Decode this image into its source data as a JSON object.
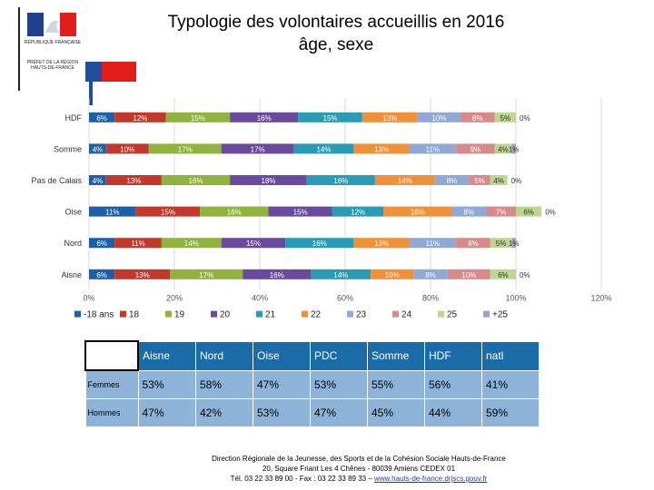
{
  "header": {
    "title_line1": "Typologie des volontaires accueillis en 2016",
    "title_line2": "âge, sexe",
    "logo_republic": "RÉPUBLIQUE FRANÇAISE",
    "logo_prefet": "PRÉFET DE LA RÉGION HAUTS-DE-FRANCE"
  },
  "chart_data": {
    "type": "bar",
    "orientation": "horizontal",
    "stacked": true,
    "categories": [
      "HDF",
      "Somme",
      "Pas de Calais",
      "Oise",
      "Nord",
      "Aisne"
    ],
    "series": [
      {
        "name": "-18 ans",
        "color": "#1f5fa8",
        "values": [
          6,
          4,
          4,
          11,
          6,
          6
        ]
      },
      {
        "name": "18",
        "color": "#c0392b",
        "values": [
          12,
          10,
          13,
          15,
          11,
          13
        ]
      },
      {
        "name": "19",
        "color": "#8fb33e",
        "values": [
          15,
          17,
          16,
          16,
          14,
          17
        ]
      },
      {
        "name": "20",
        "color": "#6a4a9c",
        "values": [
          16,
          17,
          18,
          15,
          15,
          16
        ]
      },
      {
        "name": "21",
        "color": "#2a9bb5",
        "values": [
          15,
          14,
          16,
          12,
          16,
          14
        ]
      },
      {
        "name": "22",
        "color": "#f0913a",
        "values": [
          13,
          13,
          14,
          16,
          13,
          10
        ]
      },
      {
        "name": "23",
        "color": "#8fa8d6",
        "values": [
          10,
          11,
          8,
          8,
          11,
          8
        ]
      },
      {
        "name": "24",
        "color": "#d88a8a",
        "values": [
          8,
          9,
          5,
          7,
          8,
          10
        ]
      },
      {
        "name": "25",
        "color": "#bcd890",
        "values": [
          5,
          4,
          4,
          6,
          5,
          6
        ]
      },
      {
        "name": "+25",
        "color": "#a89cc8",
        "values": [
          0,
          1,
          0,
          0,
          1,
          0
        ]
      }
    ],
    "labels": [
      [
        "6%",
        "12%",
        "15%",
        "16%",
        "15%",
        "13%",
        "10%",
        "8%",
        "5%",
        "0%"
      ],
      [
        "4%",
        "10%",
        "17%",
        "17%",
        "14%",
        "13%",
        "11%",
        "9%",
        "4%",
        "1%"
      ],
      [
        "4%",
        "13%",
        "16%",
        "18%",
        "16%",
        "14%",
        "8%",
        "5%",
        "4%",
        "0%"
      ],
      [
        "11%",
        "15%",
        "16%",
        "15%",
        "12%",
        "16%",
        "8%",
        "7%",
        "6%",
        "0%"
      ],
      [
        "6%",
        "11%",
        "14%",
        "15%",
        "16%",
        "13%",
        "11%",
        "8%",
        "5%",
        "1%"
      ],
      [
        "6%",
        "13%",
        "17%",
        "16%",
        "14%",
        "10%",
        "8%",
        "10%",
        "6%",
        "0%"
      ]
    ],
    "x_ticks": [
      "0%",
      "20%",
      "40%",
      "60%",
      "80%",
      "100%",
      "120%"
    ],
    "xlim": [
      0,
      120
    ],
    "grid": true,
    "legend": "bottom"
  },
  "table": {
    "columns": [
      "Aisne",
      "Nord",
      "Oise",
      "PDC",
      "Somme",
      "HDF",
      "natl"
    ],
    "rows": [
      {
        "label": "Femmes",
        "values": [
          "53%",
          "58%",
          "47%",
          "53%",
          "55%",
          "56%",
          "41%"
        ]
      },
      {
        "label": "Hommes",
        "values": [
          "47%",
          "42%",
          "53%",
          "47%",
          "45%",
          "44%",
          "59%"
        ]
      }
    ]
  },
  "footer": {
    "line1": "Direction Régionale de la Jeunesse, des Sports et de la Cohésion Sociale Hauts-de-France",
    "line2": "20, Square Friant Les 4 Chênes - 80039 Amiens CEDEX 01",
    "line3": "Tél. 03 22 33 89 00 - Fax : 03 22 33 89 33 – ",
    "link": "www.hauts-de-france.drjscs.gouv.fr"
  }
}
